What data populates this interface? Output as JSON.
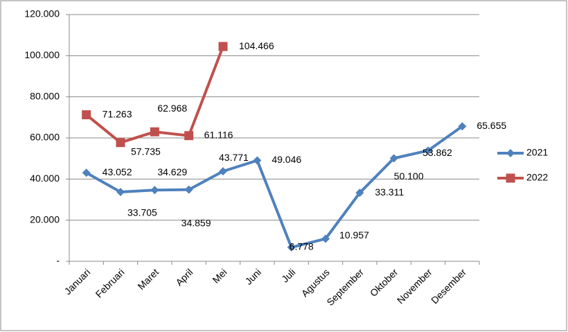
{
  "chart_data": {
    "type": "line",
    "categories": [
      "Januari",
      "Februari",
      "Maret",
      "April",
      "Mei",
      "Juni",
      "Juli",
      "Agustus",
      "September",
      "Oktober",
      "November",
      "Desember"
    ],
    "series": [
      {
        "name": "2021",
        "color": "#4f81bd",
        "marker": "diamond",
        "values": [
          43052,
          33705,
          34629,
          34859,
          43771,
          49046,
          6778,
          10957,
          33311,
          50100,
          53862,
          65655
        ],
        "value_labels": [
          "43.052",
          "33.705",
          "34.629",
          "34.859",
          "43.771",
          "49.046",
          "6.778",
          "10.957",
          "33.311",
          "50.100",
          "53.862",
          "65.655"
        ]
      },
      {
        "name": "2022",
        "color": "#c0504d",
        "marker": "square",
        "values": [
          71263,
          57735,
          62968,
          61116,
          104466,
          null,
          null,
          null,
          null,
          null,
          null,
          null
        ],
        "value_labels": [
          "71.263",
          "57.735",
          "62.968",
          "61.116",
          "104.466",
          null,
          null,
          null,
          null,
          null,
          null,
          null
        ]
      }
    ],
    "ylim": [
      0,
      120000
    ],
    "yticks": [
      {
        "value": 0,
        "label": "-"
      },
      {
        "value": 20000,
        "label": "20.000"
      },
      {
        "value": 40000,
        "label": "40.000"
      },
      {
        "value": 60000,
        "label": "60.000"
      },
      {
        "value": 80000,
        "label": "80.000"
      },
      {
        "value": 100000,
        "label": "100.000"
      },
      {
        "value": 120000,
        "label": "120.000"
      }
    ],
    "grid": true,
    "legend": "right"
  }
}
